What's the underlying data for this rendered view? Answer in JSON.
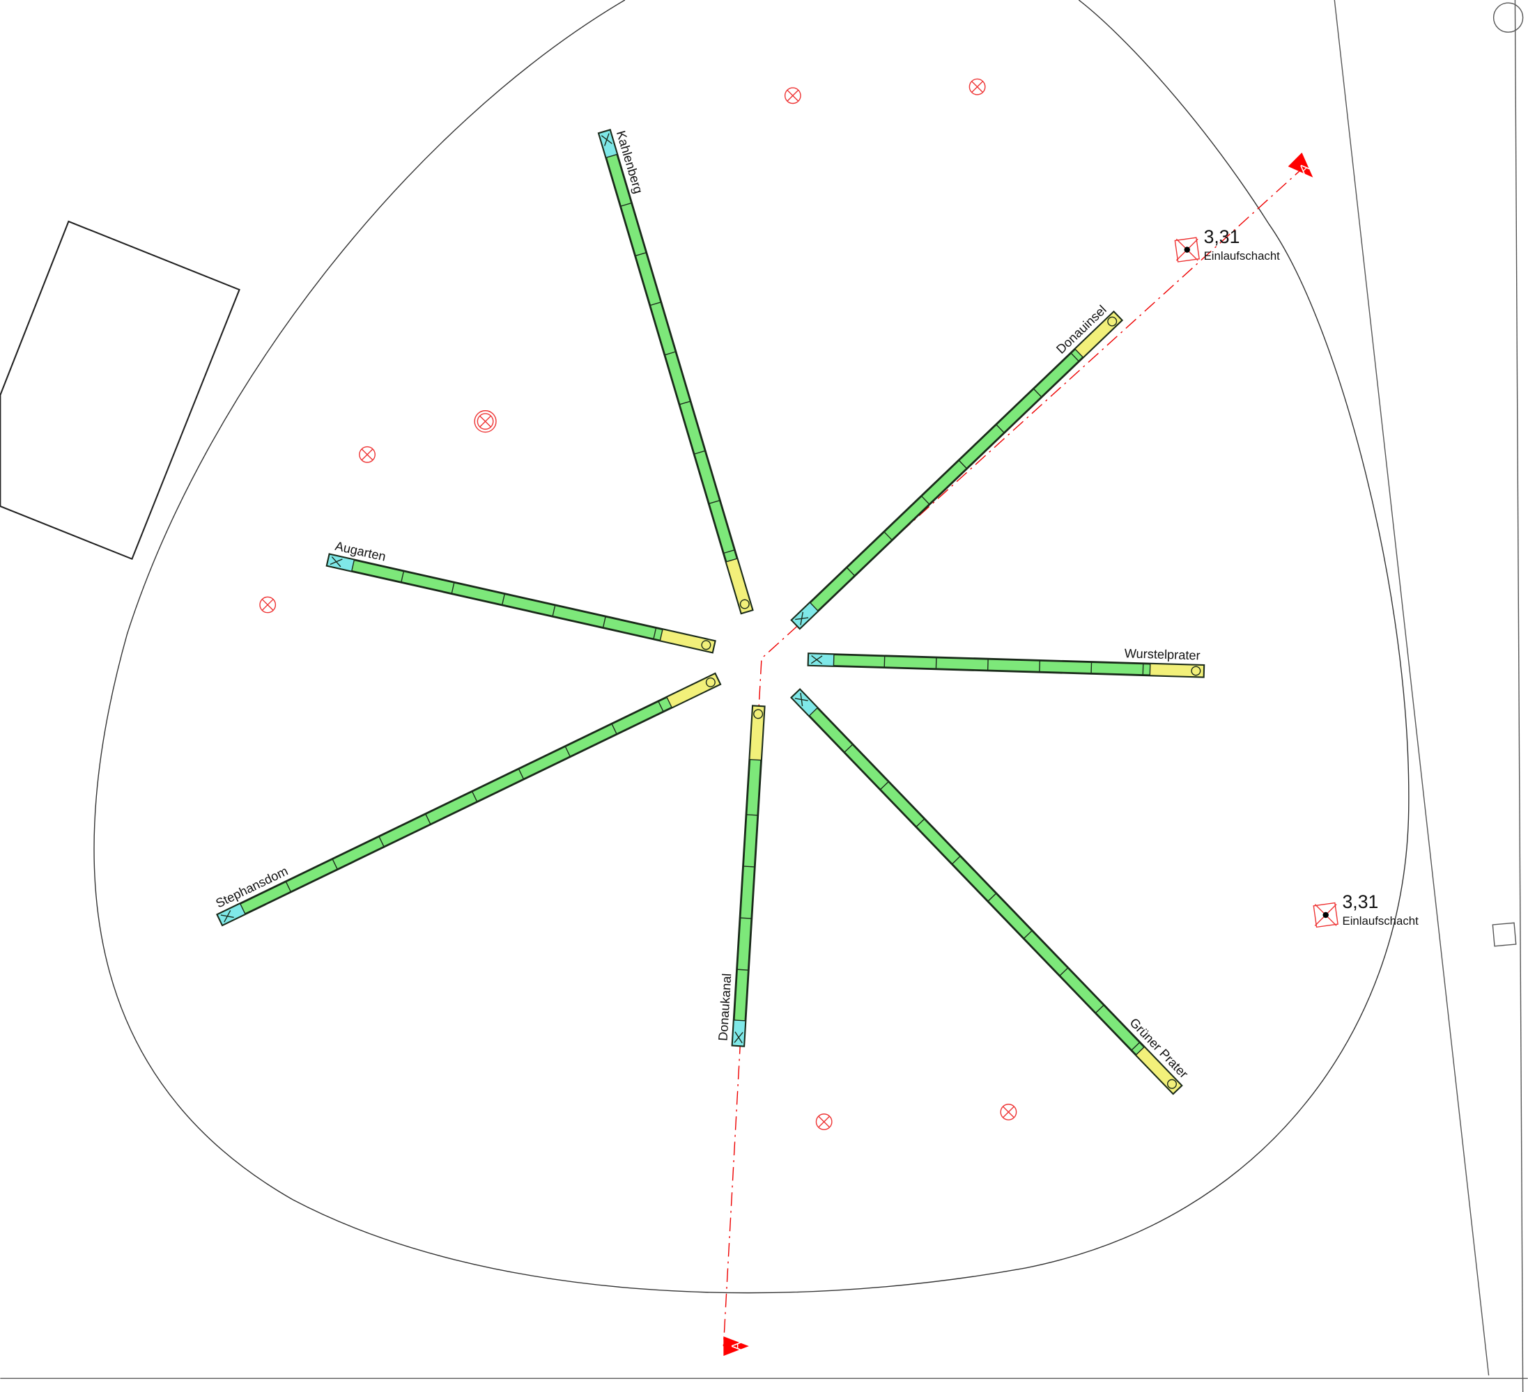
{
  "benches": [
    {
      "label": "Kahlenberg"
    },
    {
      "label": "Augarten"
    },
    {
      "label": "Stephansdom"
    },
    {
      "label": "Donaukanal"
    },
    {
      "label": "Grüner Prater"
    },
    {
      "label": "Wurstelprater"
    },
    {
      "label": "Donauinsel"
    }
  ],
  "drains": [
    {
      "level": "3,31",
      "label": "Einlaufschacht"
    },
    {
      "level": "3,31",
      "label": "Einlaufschacht"
    }
  ],
  "section_marks": [
    "A",
    "A"
  ]
}
